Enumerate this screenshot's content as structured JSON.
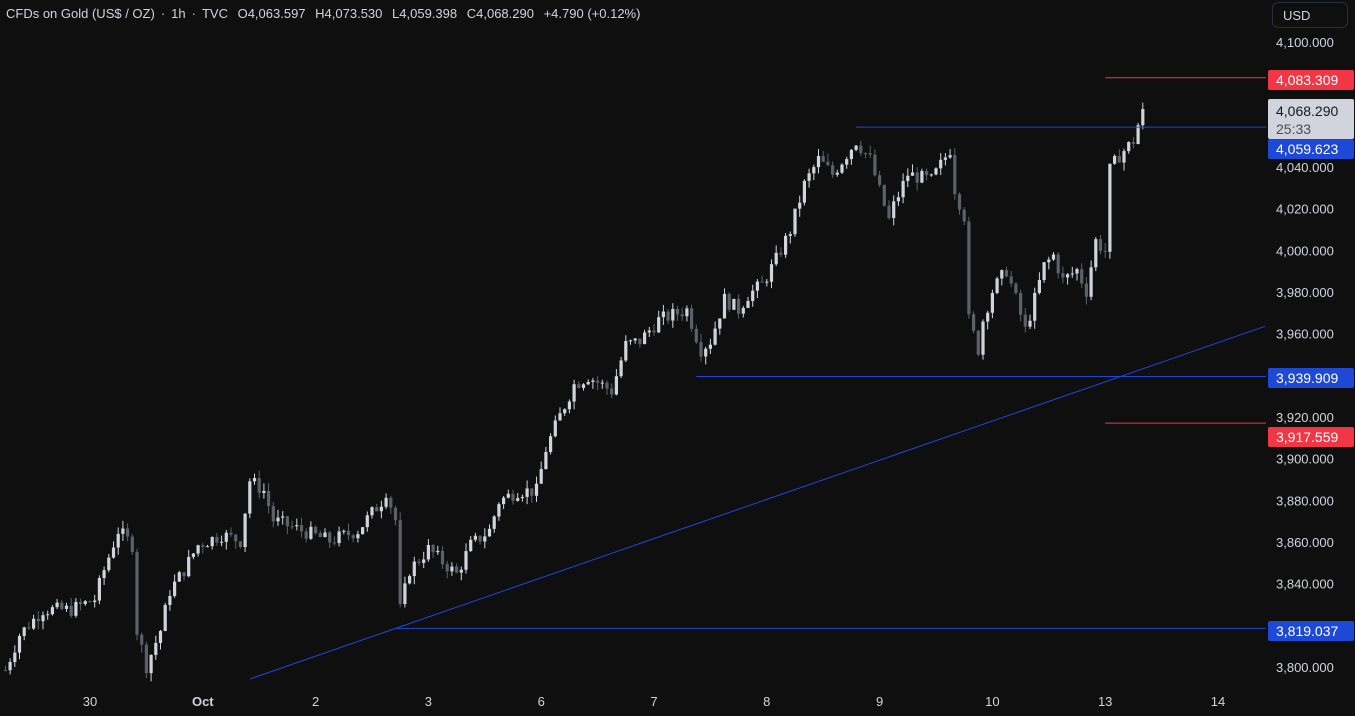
{
  "header": {
    "symbol": "CFDs on Gold (US$ / OZ)",
    "interval": "1h",
    "source": "TVC",
    "separator": "·",
    "open": "O4,063.597",
    "high": "H4,073.530",
    "low": "L4,059.398",
    "close": "C4,068.290",
    "change": "+4.790 (+0.12%)",
    "currency": "USD"
  },
  "colors": {
    "background": "#0f0f0f",
    "up_candle": "#d1d4dc",
    "down_candle": "#5d606b",
    "blue_line": "#1e48d6",
    "red_line": "#f23645",
    "text": "#d1d4dc"
  },
  "chart_data": {
    "type": "candlestick",
    "interval": "1h",
    "ylim": [
      3790,
      4110
    ],
    "y_ticks": [
      "4,100.000",
      "4,040.000",
      "4,020.000",
      "4,000.000",
      "3,980.000",
      "3,960.000",
      "3,920.000",
      "3,900.000",
      "3,880.000",
      "3,860.000",
      "3,840.000",
      "3,800.000"
    ],
    "y_tick_values": [
      4100,
      4040,
      4020,
      4000,
      3980,
      3960,
      3920,
      3900,
      3880,
      3860,
      3840,
      3800
    ],
    "x_ticks": [
      {
        "label": "30",
        "date": "09-30",
        "bold": false
      },
      {
        "label": "Oct",
        "date": "10-01",
        "bold": true
      },
      {
        "label": "2",
        "date": "10-02",
        "bold": false
      },
      {
        "label": "3",
        "date": "10-03",
        "bold": false
      },
      {
        "label": "6",
        "date": "10-06",
        "bold": false
      },
      {
        "label": "7",
        "date": "10-07",
        "bold": false
      },
      {
        "label": "8",
        "date": "10-08",
        "bold": false
      },
      {
        "label": "9",
        "date": "10-09",
        "bold": false
      },
      {
        "label": "10",
        "date": "10-10",
        "bold": false
      },
      {
        "label": "13",
        "date": "10-13",
        "bold": false
      },
      {
        "label": "14",
        "date": "10-14",
        "bold": false
      }
    ],
    "trading_days": [
      "09-29",
      "09-30",
      "10-01",
      "10-02",
      "10-03",
      "10-06",
      "10-07",
      "10-08",
      "10-09",
      "10-10",
      "10-13",
      "10-14"
    ],
    "price_path": [
      [
        "09-29 06",
        3799
      ],
      [
        "09-29 09",
        3816
      ],
      [
        "09-29 14",
        3828
      ],
      [
        "09-29 20",
        3828
      ],
      [
        "09-30 01",
        3833
      ],
      [
        "09-30 03",
        3847
      ],
      [
        "09-30 06",
        3866
      ],
      [
        "09-30 09",
        3859
      ],
      [
        "09-30 10",
        3818
      ],
      [
        "09-30 12",
        3801
      ],
      [
        "09-30 15",
        3818
      ],
      [
        "09-30 17",
        3837
      ],
      [
        "09-30 20",
        3847
      ],
      [
        "09-30 23",
        3859
      ],
      [
        "10-01 04",
        3864
      ],
      [
        "10-01 08",
        3861
      ],
      [
        "10-01 10",
        3890
      ],
      [
        "10-01 13",
        3885
      ],
      [
        "10-01 15",
        3871
      ],
      [
        "10-01 21",
        3866
      ],
      [
        "10-02 03",
        3861
      ],
      [
        "10-02 09",
        3866
      ],
      [
        "10-02 14",
        3880
      ],
      [
        "10-02 15",
        3885
      ],
      [
        "10-02 17",
        3871
      ],
      [
        "10-02 18",
        3828
      ],
      [
        "10-02 20",
        3847
      ],
      [
        "10-03 00",
        3857
      ],
      [
        "10-03 06",
        3845
      ],
      [
        "10-03 09",
        3859
      ],
      [
        "10-03 13",
        3866
      ],
      [
        "10-03 15",
        3880
      ],
      [
        "10-03 19",
        3885
      ],
      [
        "10-03 23",
        3885
      ],
      [
        "10-06 01",
        3905
      ],
      [
        "10-06 04",
        3921
      ],
      [
        "10-06 07",
        3936
      ],
      [
        "10-06 10",
        3940
      ],
      [
        "10-06 15",
        3933
      ],
      [
        "10-06 18",
        3955
      ],
      [
        "10-06 21",
        3957
      ],
      [
        "10-07 01",
        3967
      ],
      [
        "10-07 07",
        3972
      ],
      [
        "10-07 10",
        3953
      ],
      [
        "10-07 12",
        3957
      ],
      [
        "10-07 15",
        3977
      ],
      [
        "10-07 18",
        3972
      ],
      [
        "10-07 20",
        3979
      ],
      [
        "10-07 23",
        3984
      ],
      [
        "10-08 02",
        3996
      ],
      [
        "10-08 05",
        4010
      ],
      [
        "10-08 08",
        4032
      ],
      [
        "10-08 11",
        4044
      ],
      [
        "10-08 14",
        4037
      ],
      [
        "10-08 19",
        4053
      ],
      [
        "10-08 22",
        4044
      ],
      [
        "10-09 00",
        4029
      ],
      [
        "10-09 02",
        4015
      ],
      [
        "10-09 03",
        4022
      ],
      [
        "10-09 06",
        4037
      ],
      [
        "10-09 11",
        4034
      ],
      [
        "10-09 15",
        4049
      ],
      [
        "10-09 16",
        4030
      ],
      [
        "10-09 18",
        4017
      ],
      [
        "10-09 19",
        3967
      ],
      [
        "10-09 21",
        3953
      ],
      [
        "10-09 22",
        3967
      ],
      [
        "10-10 00",
        3981
      ],
      [
        "10-10 03",
        3991
      ],
      [
        "10-10 05",
        3977
      ],
      [
        "10-10 07",
        3962
      ],
      [
        "10-10 09",
        3977
      ],
      [
        "10-10 11",
        3993
      ],
      [
        "10-10 13",
        3998
      ],
      [
        "10-10 15",
        3986
      ],
      [
        "10-10 18",
        3991
      ],
      [
        "10-10 20",
        3981
      ],
      [
        "10-10 22",
        4005
      ],
      [
        "10-13 00",
        4000
      ],
      [
        "10-13 01",
        4039
      ],
      [
        "10-13 03",
        4046
      ],
      [
        "10-13 06",
        4053
      ],
      [
        "10-13 08",
        4068.29
      ]
    ],
    "horizontal_lines": [
      {
        "price": 4083.309,
        "label": "4,083.309",
        "color": "red",
        "from": "10-13 00"
      },
      {
        "price": 4059.623,
        "label": "4,059.623",
        "color": "blue",
        "from": "10-08 19"
      },
      {
        "price": 3939.909,
        "label": "3,939.909",
        "color": "blue",
        "from": "10-07 09"
      },
      {
        "price": 3917.559,
        "label": "3,917.559",
        "color": "red",
        "from": "10-13 00"
      },
      {
        "price": 3819.037,
        "label": "3,819.037",
        "color": "blue",
        "from": "10-02 17"
      }
    ],
    "trendline": {
      "color": "blue",
      "points": [
        [
          "10-02 17",
          3819.0
        ],
        [
          "10-14 10",
          3964.0
        ]
      ],
      "start": "10-01 10"
    },
    "last_price": {
      "label": "4,068.290",
      "countdown": "25:33"
    }
  }
}
